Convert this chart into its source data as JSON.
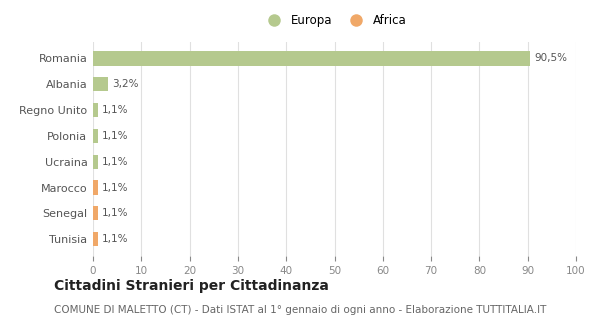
{
  "categories": [
    "Romania",
    "Albania",
    "Regno Unito",
    "Polonia",
    "Ucraina",
    "Marocco",
    "Senegal",
    "Tunisia"
  ],
  "values": [
    90.5,
    3.2,
    1.1,
    1.1,
    1.1,
    1.1,
    1.1,
    1.1
  ],
  "labels": [
    "90,5%",
    "3,2%",
    "1,1%",
    "1,1%",
    "1,1%",
    "1,1%",
    "1,1%",
    "1,1%"
  ],
  "colors": [
    "#b5c98e",
    "#b5c98e",
    "#b5c98e",
    "#b5c98e",
    "#b5c98e",
    "#f0a868",
    "#f0a868",
    "#f0a868"
  ],
  "continent": [
    "Europa",
    "Europa",
    "Europa",
    "Europa",
    "Europa",
    "Africa",
    "Africa",
    "Africa"
  ],
  "europa_color": "#b5c98e",
  "africa_color": "#f0a868",
  "xlim": [
    0,
    100
  ],
  "xticks": [
    0,
    10,
    20,
    30,
    40,
    50,
    60,
    70,
    80,
    90,
    100
  ],
  "title": "Cittadini Stranieri per Cittadinanza",
  "subtitle": "COMUNE DI MALETTO (CT) - Dati ISTAT al 1° gennaio di ogni anno - Elaborazione TUTTITALIA.IT",
  "bg_color": "#ffffff",
  "grid_color": "#e0e0e0",
  "title_fontsize": 10,
  "subtitle_fontsize": 7.5,
  "bar_height": 0.55
}
